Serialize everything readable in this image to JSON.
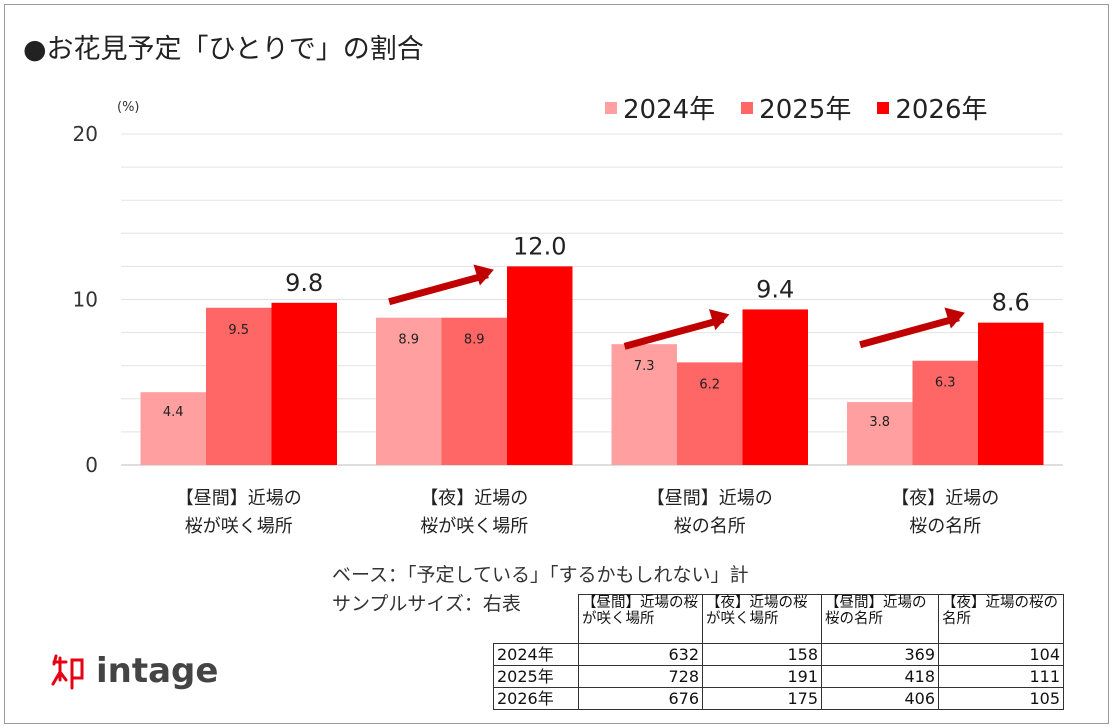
{
  "title": "●お花見予定「ひとりで」の割合",
  "unit": "(%)",
  "colors": {
    "2024": "#FF9F9F",
    "2025": "#FF6666",
    "2026": "#FF0000",
    "arrow": "#C00000"
  },
  "chart_data": {
    "type": "bar",
    "title": "●お花見予定「ひとりで」の割合",
    "ylabel": "(%)",
    "ylim": [
      0,
      20
    ],
    "yticks": [
      "0",
      "10",
      "20"
    ],
    "categories": [
      [
        "【昼間】近場の",
        "桜が咲く場所"
      ],
      [
        "【夜】近場の",
        "桜が咲く場所"
      ],
      [
        "【昼間】近場の",
        "桜の名所"
      ],
      [
        "【夜】近場の",
        "桜の名所"
      ]
    ],
    "series": [
      {
        "name": "2024年",
        "values": [
          4.4,
          8.9,
          7.3,
          3.8
        ],
        "labels": [
          "4.4",
          "8.9",
          "7.3",
          "3.8"
        ]
      },
      {
        "name": "2025年",
        "values": [
          9.5,
          8.9,
          6.2,
          6.3
        ],
        "labels": [
          "9.5",
          "8.9",
          "6.2",
          "6.3"
        ]
      },
      {
        "name": "2026年",
        "values": [
          9.8,
          12.0,
          9.4,
          8.6
        ],
        "labels": [
          "9.8",
          "12.0",
          "9.4",
          "8.6"
        ]
      }
    ],
    "arrows_on": [
      1,
      2,
      3
    ],
    "grid": true,
    "legend": "top-right"
  },
  "footnote": {
    "base": "ベース：「予定している」「するかもしれない」計",
    "sample": "サンプルサイズ：右表"
  },
  "sample_table": {
    "headers": [
      "【昼間】近場の桜が咲く場所",
      "【夜】近場の桜が咲く場所",
      "【昼間】近場の桜の名所",
      "【夜】近場の桜の名所"
    ],
    "rows": [
      {
        "year": "2024年",
        "values": [
          "632",
          "158",
          "369",
          "104"
        ]
      },
      {
        "year": "2025年",
        "values": [
          "728",
          "191",
          "418",
          "111"
        ]
      },
      {
        "year": "2026年",
        "values": [
          "676",
          "175",
          "406",
          "105"
        ]
      }
    ]
  },
  "logo": {
    "text": "intage",
    "mark": "知"
  }
}
